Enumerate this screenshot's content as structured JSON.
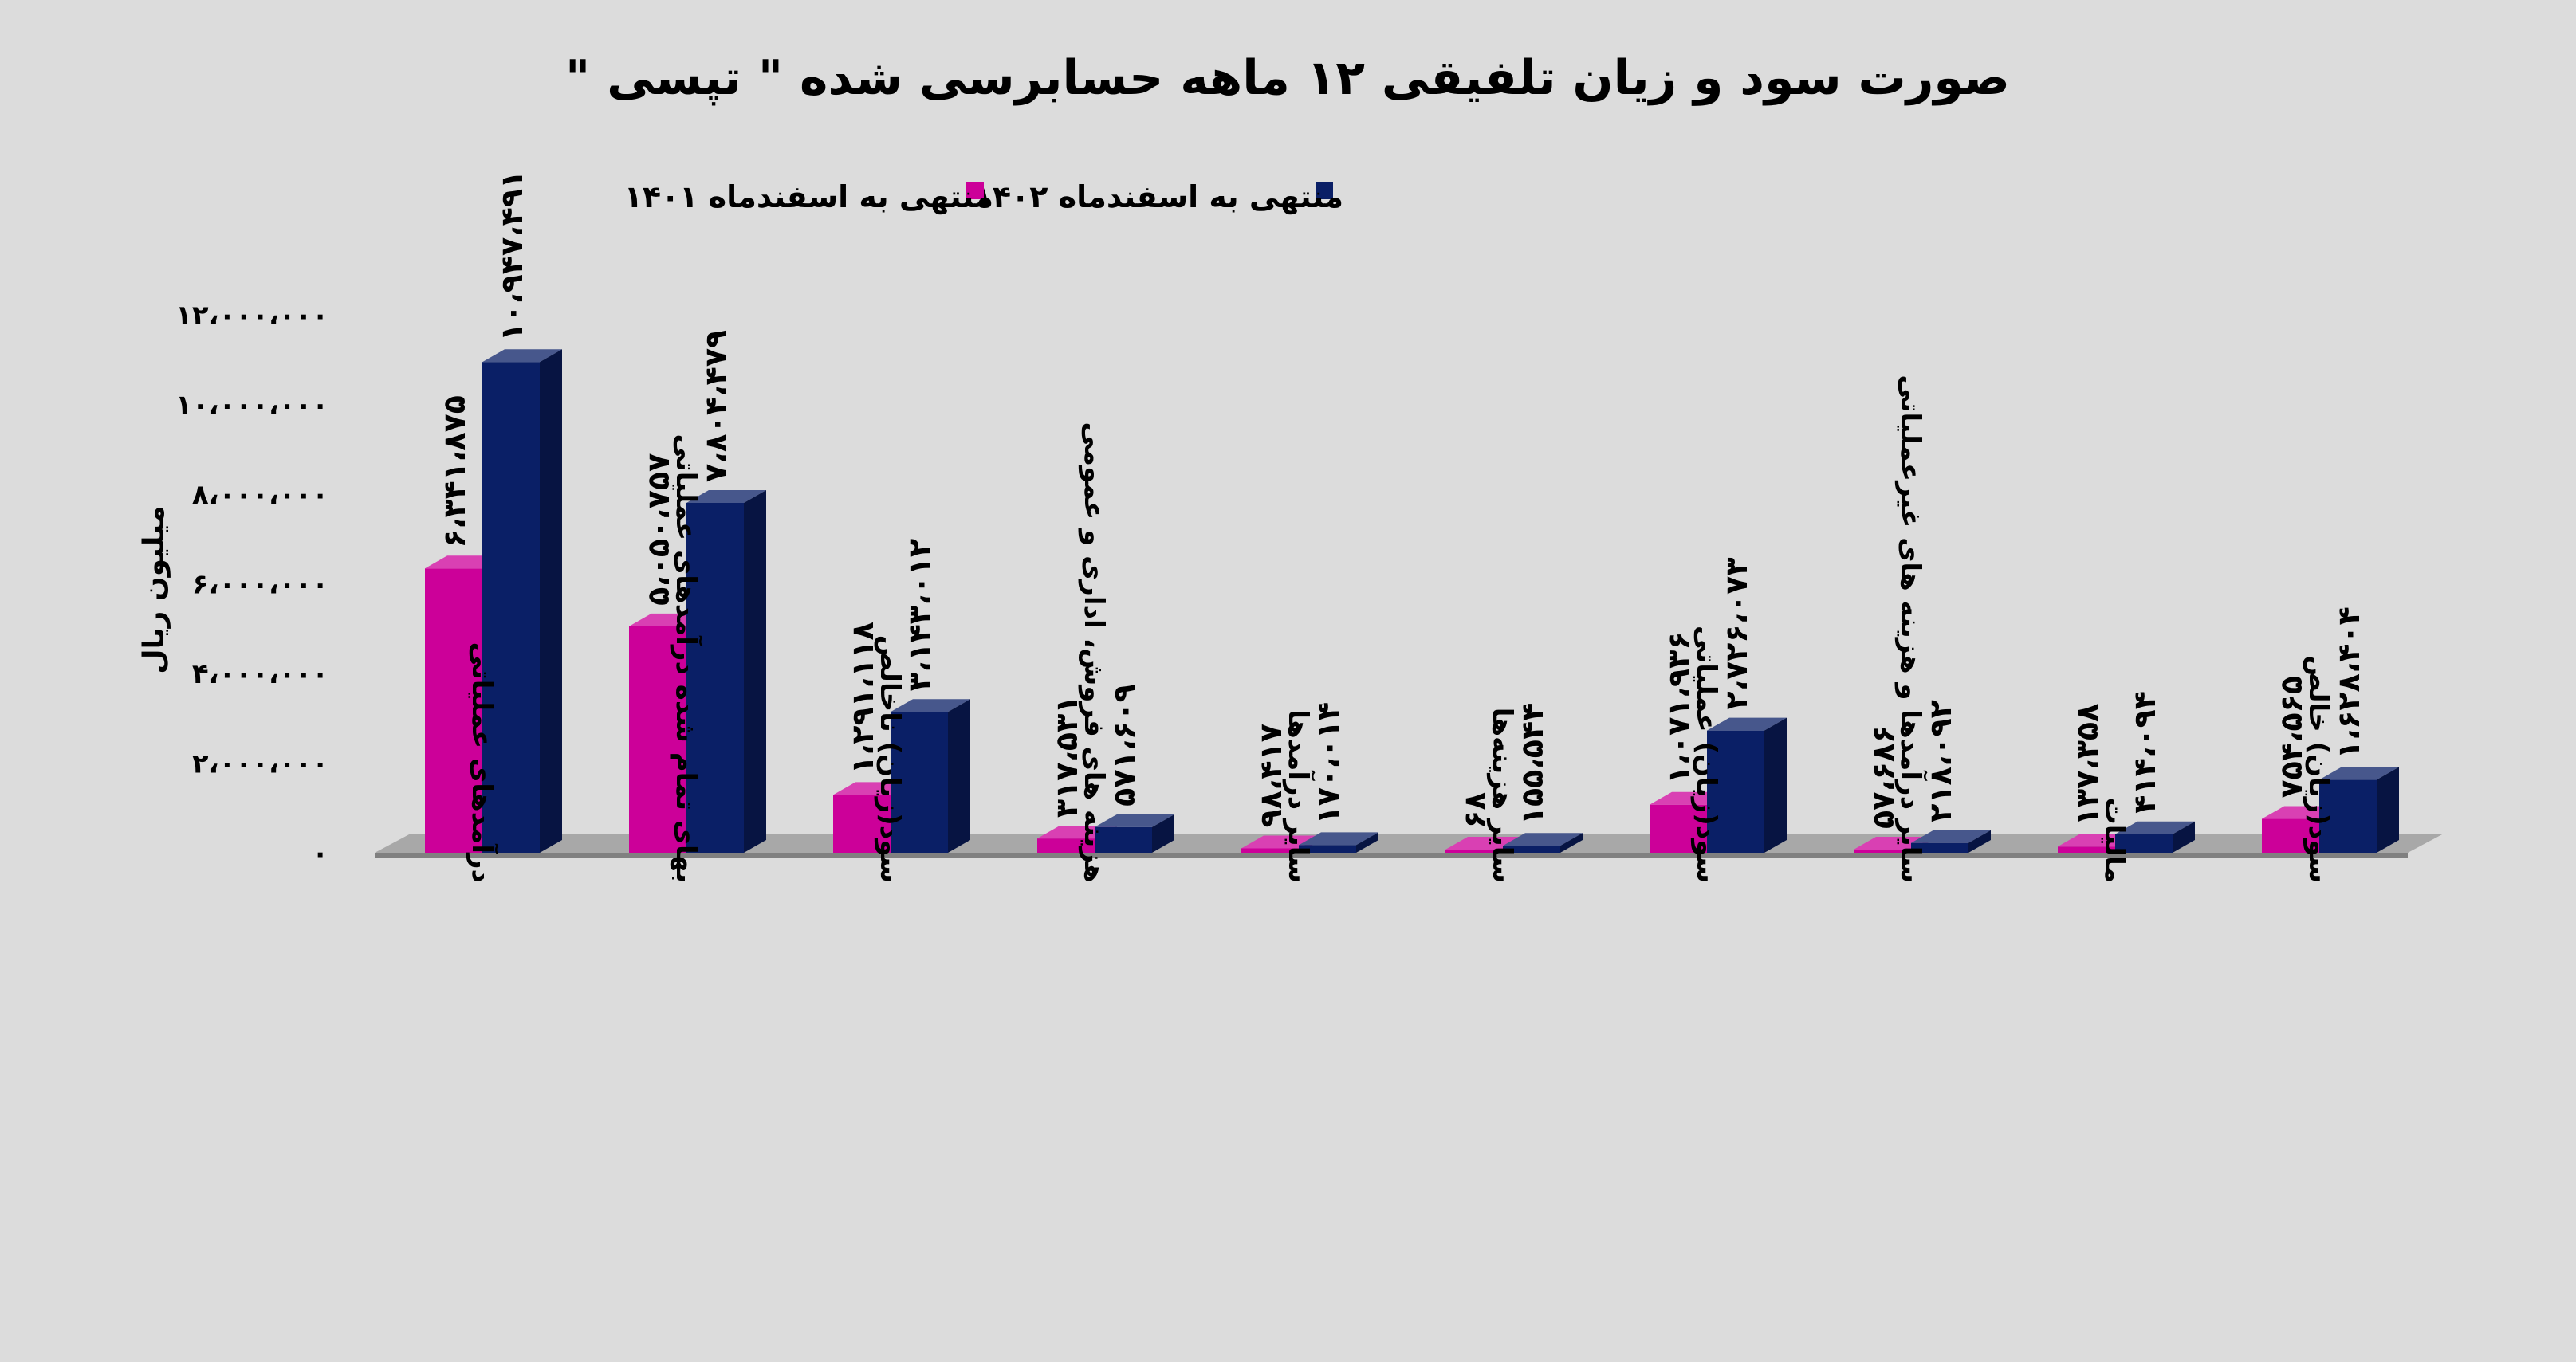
{
  "chart_data": {
    "type": "bar",
    "title": "صورت سود و زیان تلفیقی ۱۲ ماهه حسابرسی شده \" تپسی \"",
    "ylabel": "میلیون ریال",
    "xlabel": "",
    "ylim": [
      0,
      12000000
    ],
    "yticks": [
      0,
      2000000,
      4000000,
      6000000,
      8000000,
      10000000,
      12000000
    ],
    "ytick_labels": [
      "۰",
      "۲،۰۰۰،۰۰۰",
      "۴،۰۰۰،۰۰۰",
      "۶،۰۰۰،۰۰۰",
      "۸،۰۰۰،۰۰۰",
      "۱۰،۰۰۰،۰۰۰",
      "۱۲،۰۰۰،۰۰۰"
    ],
    "grid": false,
    "legend_position": "top-center",
    "categories": [
      "درآمدهای عملیاتی",
      "بهای تمام شده درآمدهای عملیاتی",
      "سود(زیان) ناخالص",
      "هزینه های فروش، اداری و عمومی",
      "سایر درآمدها",
      "سایر هزینه‌ها",
      "سود(زیان) عملیاتی",
      "سایر درآمدها و هزینه های غیرعملیاتی",
      "مالیات",
      "سود(زیان) خالص"
    ],
    "series": [
      {
        "name": "منتهی به اسفندماه ۱۴۰۱",
        "color": "#cc0099",
        "values": [
          6341875,
          5050757,
          1291118,
          317531,
          98417,
          68,
          1071936,
          57686,
          137358,
          754565
        ],
        "labels": [
          "۶،۳۴۱،۸۷۵",
          "۵،۰۵۰،۷۵۷",
          "۱،۲۹۱،۱۱۸",
          "۳۱۷،۵۳۱",
          "۹۸،۴۱۷",
          "۶۸",
          "۱،۰۷۱،۹۳۶",
          "۵۷،۶۸۶",
          "۱۳۷،۳۵۸",
          "۷۵۴،۵۶۵"
        ]
      },
      {
        "name": "منتهی به اسفندماه ۱۴۰۲",
        "color": "#0a1f66",
        "values": [
          10947491,
          7804479,
          3143012,
          571609,
          170014,
          155544,
          2726073,
          218092,
          414094,
          1628404
        ],
        "labels": [
          "۱۰،۹۴۷،۴۹۱",
          "۷،۸۰۴،۴۷۹",
          "۳،۱۴۳،۰۱۲",
          "۵۷۱،۶۰۹",
          "۱۷۰،۰۱۴",
          "۱۵۵،۵۴۴",
          "۲،۷۲۶،۰۷۳",
          "۲۱۸،۰۹۲",
          "۴۱۴،۰۹۴",
          "۱،۶۲۸،۴۰۴"
        ]
      }
    ]
  }
}
